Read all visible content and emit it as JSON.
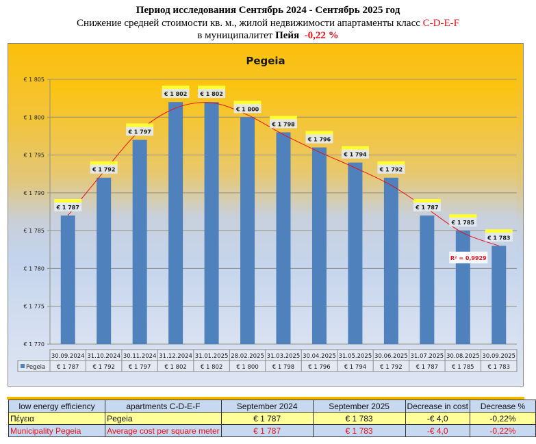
{
  "header": {
    "line1": "Период исследования Сентябрь 2024 - Сентябрь 2025 год",
    "line2_prefix": "Снижение средней стоимости кв. м., жилой недвижимости апартаменты класс ",
    "line2_class": "C-D-E-F",
    "line3_prefix": "в муниципалитет ",
    "line3_place": "Пейя",
    "line3_change": "-0,22 %"
  },
  "colors": {
    "bar": "#4f81bd",
    "trend": "#e8101a",
    "label_highlight": "#ffff33",
    "accent_red": "#e8101a"
  },
  "chart_data": {
    "type": "bar",
    "title": "Pegeia",
    "xlabel": "",
    "ylabel": "",
    "ylim": [
      1770,
      1805
    ],
    "yticks": [
      1770,
      1775,
      1780,
      1785,
      1790,
      1795,
      1800,
      1805
    ],
    "ytick_labels": [
      "€ 1 770",
      "€ 1 775",
      "€ 1 780",
      "€ 1 785",
      "€ 1 790",
      "€ 1 795",
      "€ 1 800",
      "€ 1 805"
    ],
    "grid": true,
    "categories": [
      "30.09.2024",
      "31.10.2024",
      "30.11.2024",
      "31.12.2024",
      "31.01.2025",
      "28.02.2025",
      "31.03.2025",
      "30.04.2025",
      "31.05.2025",
      "30.06.2025",
      "31.07.2025",
      "30.08.2025",
      "30.09.2025"
    ],
    "series": [
      {
        "name": "Pegeia",
        "values": [
          1787,
          1792,
          1797,
          1802,
          1802,
          1800,
          1798,
          1796,
          1794,
          1792,
          1787,
          1785,
          1783
        ],
        "labels": [
          "€ 1 787",
          "€ 1 792",
          "€ 1 797",
          "€ 1 802",
          "€ 1 802",
          "€ 1 800",
          "€ 1 798",
          "€ 1 796",
          "€ 1 794",
          "€ 1 792",
          "€ 1 787",
          "€ 1 785",
          "€ 1 783"
        ]
      }
    ],
    "trendline": {
      "type": "polynomial",
      "r2_label": "R² = 0,9929"
    },
    "legend": "data-table-left"
  },
  "summary_table": {
    "headers": [
      "low energy efficiency",
      "apartments C-D-E-F",
      "September 2024",
      "September 2025",
      "Decrease in cost",
      "Decrease %"
    ],
    "rows": [
      [
        "Πέγεια",
        "Pegeia",
        "€ 1 787",
        "€ 1 783",
        "-€ 4,0",
        "-0,22%"
      ],
      [
        "Municipality Pegeia",
        "Average cost per square meter",
        "€ 1 787",
        "€ 1 783",
        "-€ 4,0",
        "-0,22%"
      ]
    ]
  }
}
